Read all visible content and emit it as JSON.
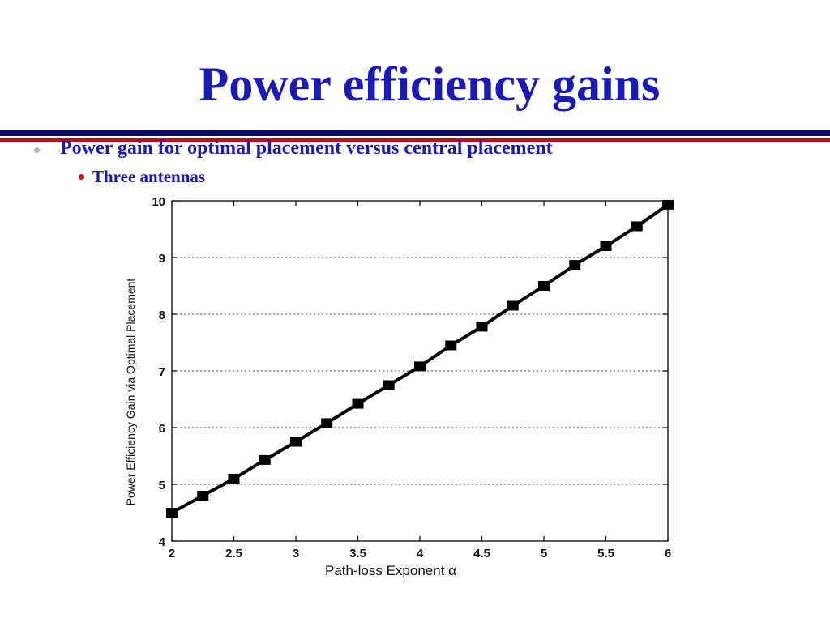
{
  "slide": {
    "title": "Power efficiency gains",
    "bullets": [
      {
        "text": "Power gain for optimal placement versus central placement"
      },
      {
        "text": "Three antennas"
      }
    ]
  },
  "colors": {
    "title": "#1a1ab8",
    "bullet_text": "#1a1ab8",
    "rule_navy": "#0b0b62",
    "rule_red": "#b0131b",
    "sub_bullet_dot": "#c0141c",
    "series_line": "#000000"
  },
  "chart_data": {
    "type": "line",
    "title": "",
    "xlabel": "Path-loss Exponent α",
    "ylabel": "Power Efficiency Gain via Optimal Placement",
    "xlim": [
      2,
      6
    ],
    "ylim": [
      4,
      10
    ],
    "xticks": [
      2,
      2.5,
      3,
      3.5,
      4,
      4.5,
      5,
      5.5,
      6
    ],
    "yticks": [
      4,
      5,
      6,
      7,
      8,
      9,
      10
    ],
    "grid": "horizontal-dotted",
    "marker": "square",
    "series": [
      {
        "x": [
          2,
          2.25,
          2.5,
          2.75,
          3,
          3.25,
          3.5,
          3.75,
          4,
          4.25,
          4.5,
          4.75,
          5,
          5.25,
          5.5,
          5.75,
          6
        ],
        "y": [
          4.5,
          4.8,
          5.1,
          5.43,
          5.75,
          6.08,
          6.42,
          6.75,
          7.08,
          7.45,
          7.78,
          8.15,
          8.5,
          8.87,
          9.2,
          9.55,
          9.93
        ]
      }
    ]
  }
}
